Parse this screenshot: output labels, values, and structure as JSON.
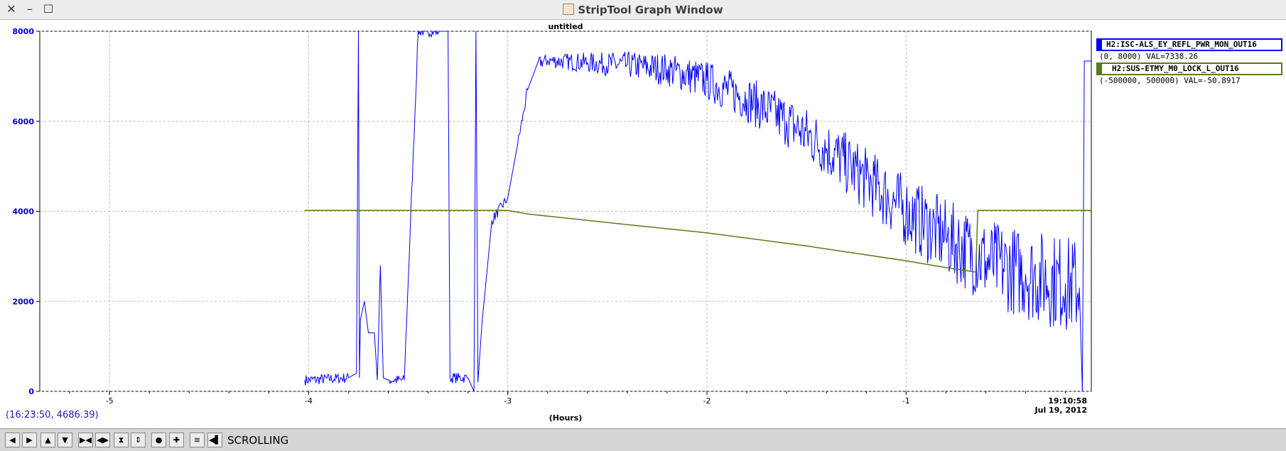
{
  "window": {
    "title": "StripTool Graph Window"
  },
  "chart_data": {
    "type": "line",
    "title": "untitled",
    "xlabel": "(Hours)",
    "ylabel": "",
    "xlim": [
      -5.35,
      -0.07
    ],
    "ylim": [
      0,
      8000
    ],
    "grid": true,
    "x_ticks": [
      -5,
      -4,
      -3,
      -2,
      -1
    ],
    "x_tick_labels": [
      "-5",
      "-4",
      "-3",
      "-2",
      "-1"
    ],
    "y_ticks": [
      0,
      2000,
      4000,
      6000,
      8000
    ],
    "y_tick_labels": [
      "0",
      "2000",
      "4000",
      "6000",
      "8000"
    ],
    "end_time": "19:10:58",
    "end_date": "Jul 19, 2012",
    "cursor_readout": "(16:23:50, 4686.39)",
    "legend_position": "right",
    "series": [
      {
        "name": "H2:ISC-ALS_EY_REFL_PWR_MON_OUT16",
        "range": "(0, 8000)",
        "value": "VAL=7338.26",
        "color": "#0000ff",
        "points": [
          [
            -4.02,
            250
          ],
          [
            -3.8,
            300
          ],
          [
            -3.76,
            400
          ],
          [
            -3.75,
            8000
          ],
          [
            -3.745,
            300
          ],
          [
            -3.74,
            1600
          ],
          [
            -3.72,
            2000
          ],
          [
            -3.7,
            1300
          ],
          [
            -3.67,
            1300
          ],
          [
            -3.655,
            250
          ],
          [
            -3.64,
            2800
          ],
          [
            -3.625,
            300
          ],
          [
            -3.6,
            250
          ],
          [
            -3.52,
            250
          ],
          [
            -3.45,
            8000
          ],
          [
            -3.34,
            8000
          ],
          [
            -3.3,
            8000
          ],
          [
            -3.29,
            300
          ],
          [
            -3.2,
            300
          ],
          [
            -3.17,
            0
          ],
          [
            -3.16,
            8000
          ],
          [
            -3.15,
            200
          ],
          [
            -3.13,
            1500
          ],
          [
            -3.08,
            3800
          ],
          [
            -3.0,
            4300
          ],
          [
            -2.95,
            5500
          ],
          [
            -2.9,
            6700
          ],
          [
            -2.85,
            7300
          ],
          [
            -2.8,
            7350
          ],
          [
            -2.6,
            7300
          ],
          [
            -2.4,
            7250
          ],
          [
            -2.2,
            7150
          ],
          [
            -2.0,
            6900
          ],
          [
            -1.8,
            6500
          ],
          [
            -1.6,
            6000
          ],
          [
            -1.4,
            5400
          ],
          [
            -1.2,
            4700
          ],
          [
            -1.0,
            4000
          ],
          [
            -0.8,
            3400
          ],
          [
            -0.6,
            2900
          ],
          [
            -0.4,
            2600
          ],
          [
            -0.2,
            2400
          ],
          [
            -0.13,
            2300
          ],
          [
            -0.115,
            0
          ],
          [
            -0.105,
            7338
          ],
          [
            -0.07,
            7338
          ]
        ]
      },
      {
        "name": "H2:SUS-ETMY_M0_LOCK_L_OUT16",
        "range": "(-500000, 500000)",
        "value": "VAL=-50.8917",
        "color": "#5a7a1a",
        "points": [
          [
            -4.02,
            4020
          ],
          [
            -3.0,
            4020
          ],
          [
            -2.9,
            3940
          ],
          [
            -2.5,
            3750
          ],
          [
            -2.0,
            3520
          ],
          [
            -1.5,
            3230
          ],
          [
            -1.0,
            2900
          ],
          [
            -0.8,
            2750
          ],
          [
            -0.65,
            2650
          ],
          [
            -0.64,
            4020
          ],
          [
            -0.07,
            4020
          ]
        ]
      }
    ]
  },
  "toolbar": {
    "mode_label": "SCROLLING",
    "buttons": [
      "arrow-left-icon",
      "arrow-right-icon",
      "arrow-up-icon",
      "arrow-down-icon",
      "zoom-x-in-icon",
      "zoom-x-out-icon",
      "zoom-y-in-icon",
      "zoom-y-out-icon",
      "refresh-icon",
      "zoom-reset-icon",
      "autoscale-icon",
      "pause-icon"
    ]
  }
}
